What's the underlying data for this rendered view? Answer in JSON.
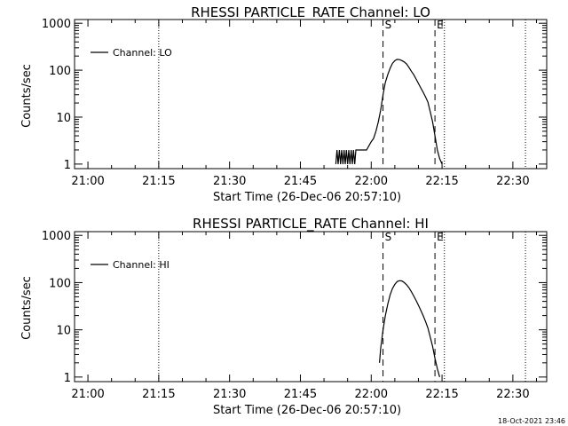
{
  "footer": {
    "timestamp": "18-Oct-2021 23:46"
  },
  "chart_data": [
    {
      "type": "line",
      "title": "RHESSI PARTICLE_RATE Channel: LO",
      "xlabel": "Start Time (26-Dec-06 20:57:10)",
      "ylabel": "Counts/sec",
      "y_scale": "log",
      "xlim": [
        "20:57:10",
        "22:37:10"
      ],
      "ylim": [
        0.8,
        1200
      ],
      "x_ticks": [
        "21:00",
        "21:15",
        "21:30",
        "21:45",
        "22:00",
        "22:15",
        "22:30"
      ],
      "y_ticks": [
        "1",
        "10",
        "100",
        "1000"
      ],
      "legend": {
        "position": "top-left",
        "entries": [
          "Channel: LO"
        ]
      },
      "markers": [
        {
          "label": "S",
          "time": "22:02:30",
          "style": "dashed"
        },
        {
          "label": "E",
          "time": "22:13:30",
          "style": "dashed"
        }
      ],
      "vlines_dotted": [
        "21:15:00",
        "22:15:30",
        "22:32:40"
      ],
      "series": [
        {
          "name": "Channel: LO",
          "x": [
            "21:52:30",
            "21:52:45",
            "21:53:00",
            "21:53:15",
            "21:53:30",
            "21:53:45",
            "21:54:00",
            "21:54:15",
            "21:54:30",
            "21:54:45",
            "21:55:00",
            "21:55:15",
            "21:55:30",
            "21:55:45",
            "21:56:00",
            "21:56:15",
            "21:56:30",
            "21:56:45",
            "21:57:00",
            "21:58:00",
            "21:59:00",
            "22:00:00",
            "22:00:30",
            "22:01:00",
            "22:01:30",
            "22:02:00",
            "22:02:30",
            "22:03:00",
            "22:03:30",
            "22:04:00",
            "22:04:30",
            "22:05:00",
            "22:05:30",
            "22:06:00",
            "22:06:30",
            "22:07:00",
            "22:07:30",
            "22:08:00",
            "22:08:30",
            "22:09:00",
            "22:09:30",
            "22:10:00",
            "22:10:30",
            "22:11:00",
            "22:11:30",
            "22:12:00",
            "22:12:30",
            "22:13:00",
            "22:13:30",
            "22:14:00",
            "22:14:30",
            "22:15:00"
          ],
          "y": [
            1,
            2,
            1,
            2,
            1,
            2,
            1,
            2,
            1,
            2,
            1,
            2,
            1,
            2,
            1,
            2,
            1,
            2,
            2,
            2,
            2,
            3,
            3.5,
            5,
            8,
            14,
            30,
            55,
            80,
            110,
            140,
            160,
            170,
            168,
            160,
            150,
            135,
            115,
            95,
            80,
            65,
            52,
            42,
            34,
            27,
            21,
            13,
            8,
            4,
            2,
            1.3,
            1
          ]
        }
      ]
    },
    {
      "type": "line",
      "title": "RHESSI PARTICLE_RATE Channel: HI",
      "xlabel": "Start Time (26-Dec-06 20:57:10)",
      "ylabel": "Counts/sec",
      "y_scale": "log",
      "xlim": [
        "20:57:10",
        "22:37:10"
      ],
      "ylim": [
        0.8,
        1200
      ],
      "x_ticks": [
        "21:00",
        "21:15",
        "21:30",
        "21:45",
        "22:00",
        "22:15",
        "22:30"
      ],
      "y_ticks": [
        "1",
        "10",
        "100",
        "1000"
      ],
      "legend": {
        "position": "top-left",
        "entries": [
          "Channel: HI"
        ]
      },
      "markers": [
        {
          "label": "S",
          "time": "22:02:30",
          "style": "dashed"
        },
        {
          "label": "E",
          "time": "22:13:30",
          "style": "dashed"
        }
      ],
      "vlines_dotted": [
        "21:15:00",
        "22:15:30",
        "22:32:40"
      ],
      "series": [
        {
          "name": "Channel: HI",
          "x": [
            "22:01:45",
            "22:02:00",
            "22:02:30",
            "22:03:00",
            "22:03:30",
            "22:04:00",
            "22:04:30",
            "22:05:00",
            "22:05:30",
            "22:06:00",
            "22:06:30",
            "22:07:00",
            "22:07:30",
            "22:08:00",
            "22:08:30",
            "22:09:00",
            "22:09:30",
            "22:10:00",
            "22:10:30",
            "22:11:00",
            "22:11:30",
            "22:12:00",
            "22:12:30",
            "22:13:00",
            "22:13:30",
            "22:14:00",
            "22:14:30"
          ],
          "y": [
            2,
            4,
            10,
            20,
            35,
            55,
            75,
            92,
            105,
            110,
            108,
            100,
            90,
            78,
            64,
            52,
            42,
            33,
            26,
            20,
            15,
            11,
            7,
            4.5,
            2.5,
            1.5,
            1
          ]
        }
      ]
    }
  ]
}
